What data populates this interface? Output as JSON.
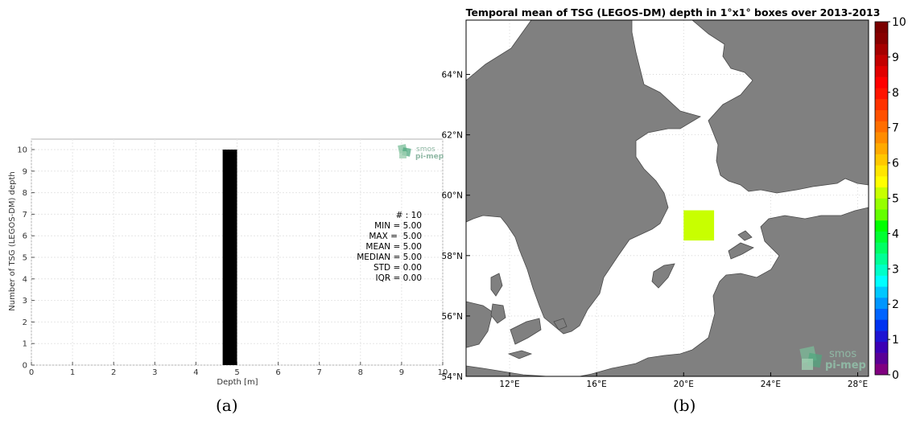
{
  "chart_data": [
    {
      "type": "bar",
      "panel": "a",
      "xlabel": "Depth [m]",
      "ylabel": "Number of TSG (LEGOS-DM) depth",
      "xlim": [
        0,
        10
      ],
      "ylim": [
        0,
        10
      ],
      "xticks": [
        "0",
        "1",
        "2",
        "3",
        "4",
        "5",
        "6",
        "7",
        "8",
        "9",
        "10"
      ],
      "yticks": [
        "0",
        "1",
        "2",
        "3",
        "4",
        "5",
        "6",
        "7",
        "8",
        "9",
        "10"
      ],
      "bins": [
        {
          "x0": 4.65,
          "x1": 5.0,
          "count": 10
        }
      ],
      "bar_color": "#000000",
      "grid": true,
      "stats": [
        {
          "label": "# : 10"
        },
        {
          "label": "MIN = 5.00"
        },
        {
          "label": "MAX =  5.00"
        },
        {
          "label": "MEAN = 5.00"
        },
        {
          "label": "MEDIAN = 5.00"
        },
        {
          "label": "STD = 0.00"
        },
        {
          "label": "IQR = 0.00"
        }
      ],
      "logo": {
        "line1": "smos",
        "line2": "pi-mep"
      }
    },
    {
      "type": "heatmap",
      "panel": "b",
      "title": "Temporal mean of TSG (LEGOS-DM) depth in 1°x1° boxes over 2013-2013",
      "xlim": [
        10,
        28.5
      ],
      "ylim": [
        54,
        65.8
      ],
      "xticks": [
        {
          "value": 12,
          "label": "12°E"
        },
        {
          "value": 16,
          "label": "16°E"
        },
        {
          "value": 20,
          "label": "20°E"
        },
        {
          "value": 24,
          "label": "24°E"
        },
        {
          "value": 28,
          "label": "28°E"
        }
      ],
      "yticks": [
        {
          "value": 54,
          "label": "54°N"
        },
        {
          "value": 56,
          "label": "56°N"
        },
        {
          "value": 58,
          "label": "58°N"
        },
        {
          "value": 60,
          "label": "60°N"
        },
        {
          "value": 62,
          "label": "62°N"
        },
        {
          "value": 64,
          "label": "64°N"
        }
      ],
      "cells": [
        {
          "lon0": 20,
          "lon1": 21.4,
          "lat0": 58.5,
          "lat1": 59.5,
          "value": 5.0
        }
      ],
      "land_color": "#808080",
      "sea_color": "#ffffff",
      "colorbar": {
        "min": 0,
        "max": 10,
        "ticks": [
          "0",
          "1",
          "2",
          "3",
          "4",
          "5",
          "6",
          "7",
          "8",
          "9",
          "10"
        ],
        "colors": [
          "#800080",
          "#5a0096",
          "#3c00b4",
          "#1e14d2",
          "#0032f0",
          "#0064ff",
          "#0096ff",
          "#00c8ff",
          "#00ffff",
          "#00ffc8",
          "#00ff96",
          "#00ff64",
          "#00ff32",
          "#00ff00",
          "#64ff00",
          "#96ff00",
          "#c8ff00",
          "#ffff00",
          "#ffe600",
          "#ffc800",
          "#ffaa00",
          "#ff8c00",
          "#ff6e00",
          "#ff5000",
          "#ff3200",
          "#ff1400",
          "#ff0000",
          "#e10000",
          "#c30000",
          "#a50000",
          "#870000",
          "#7a0000"
        ]
      },
      "logo": {
        "line1": "smos",
        "line2": "pi-mep"
      }
    }
  ],
  "captions": {
    "a": "(a)",
    "b": "(b)"
  }
}
